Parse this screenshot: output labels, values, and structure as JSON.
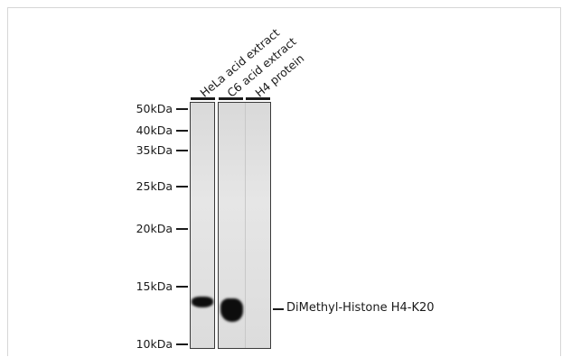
{
  "blot": {
    "lanes": [
      {
        "label": "HeLa acid extract"
      },
      {
        "label": "C6 acid extract"
      },
      {
        "label": "H4 protein"
      }
    ],
    "markers": [
      {
        "label": "50kDa"
      },
      {
        "label": "40kDa"
      },
      {
        "label": "35kDa"
      },
      {
        "label": "25kDa"
      },
      {
        "label": "20kDa"
      },
      {
        "label": "15kDa"
      },
      {
        "label": "10kDa"
      }
    ],
    "band_label": "DiMethyl-Histone H4-K20"
  }
}
